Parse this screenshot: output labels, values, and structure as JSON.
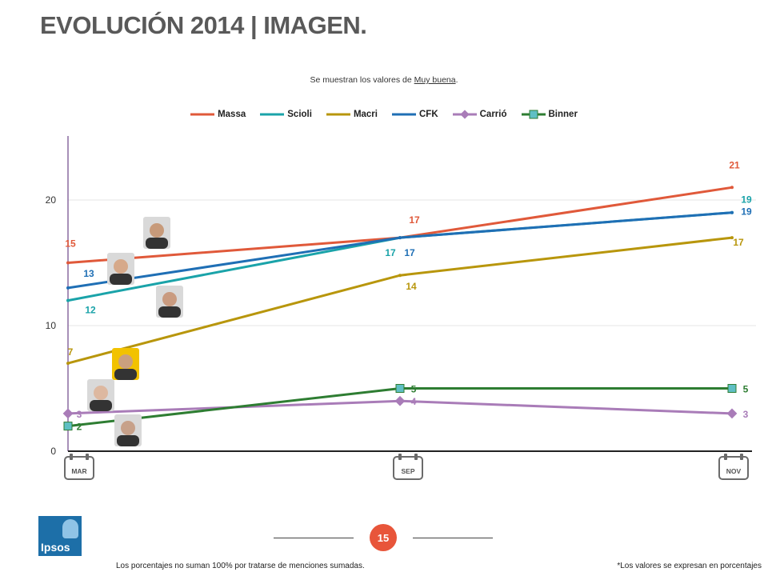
{
  "header": {
    "title": "EVOLUCIÓN 2014 | IMAGEN.",
    "subtitle_prefix": "Se muestran los valores de ",
    "subtitle_underlined": "Muy buena",
    "subtitle_suffix": "."
  },
  "chart_data": {
    "type": "line",
    "categories": [
      "MAR",
      "SEP",
      "NOV"
    ],
    "ylim": [
      0,
      25
    ],
    "yticks": [
      0,
      10,
      20
    ],
    "grid": true,
    "legend_placement": "top",
    "series": [
      {
        "name": "Massa",
        "color": "#e0593a",
        "marker": "dash",
        "values": [
          15,
          17,
          21
        ]
      },
      {
        "name": "Scioli",
        "color": "#1aa3a9",
        "marker": "dash",
        "values": [
          12,
          17,
          19
        ]
      },
      {
        "name": "Macri",
        "color": "#b8960c",
        "marker": "dash",
        "values": [
          7,
          14,
          17
        ]
      },
      {
        "name": "CFK",
        "color": "#1f6fb5",
        "marker": "dash",
        "values": [
          13,
          17,
          19
        ]
      },
      {
        "name": "Carrió",
        "color": "#a97cb8",
        "marker": "diamond",
        "values": [
          3,
          4,
          3
        ]
      },
      {
        "name": "Binner",
        "color": "#2e7d32",
        "marker": "square",
        "values": [
          2,
          5,
          5
        ]
      }
    ],
    "data_labels": [
      {
        "series": "Massa",
        "labels": [
          "15",
          "17",
          "21"
        ]
      },
      {
        "series": "Scioli",
        "labels": [
          "12",
          "17",
          "19"
        ]
      },
      {
        "series": "Macri",
        "labels": [
          "7",
          "14",
          "17"
        ]
      },
      {
        "series": "CFK",
        "labels": [
          "13",
          "17",
          "19"
        ]
      },
      {
        "series": "Carrió",
        "labels": [
          "3",
          "4",
          "3"
        ]
      },
      {
        "series": "Binner",
        "labels": [
          "2",
          "5",
          "5"
        ]
      }
    ],
    "portraits": [
      "Massa",
      "CFK",
      "Scioli",
      "Macri",
      "Carrió",
      "Binner"
    ]
  },
  "footer": {
    "page_number": "15",
    "note_left": "Los porcentajes no suman 100% por tratarse de menciones sumadas.",
    "note_right": "*Los valores se expresan en porcentajes",
    "logo_text": "Ipsos"
  }
}
